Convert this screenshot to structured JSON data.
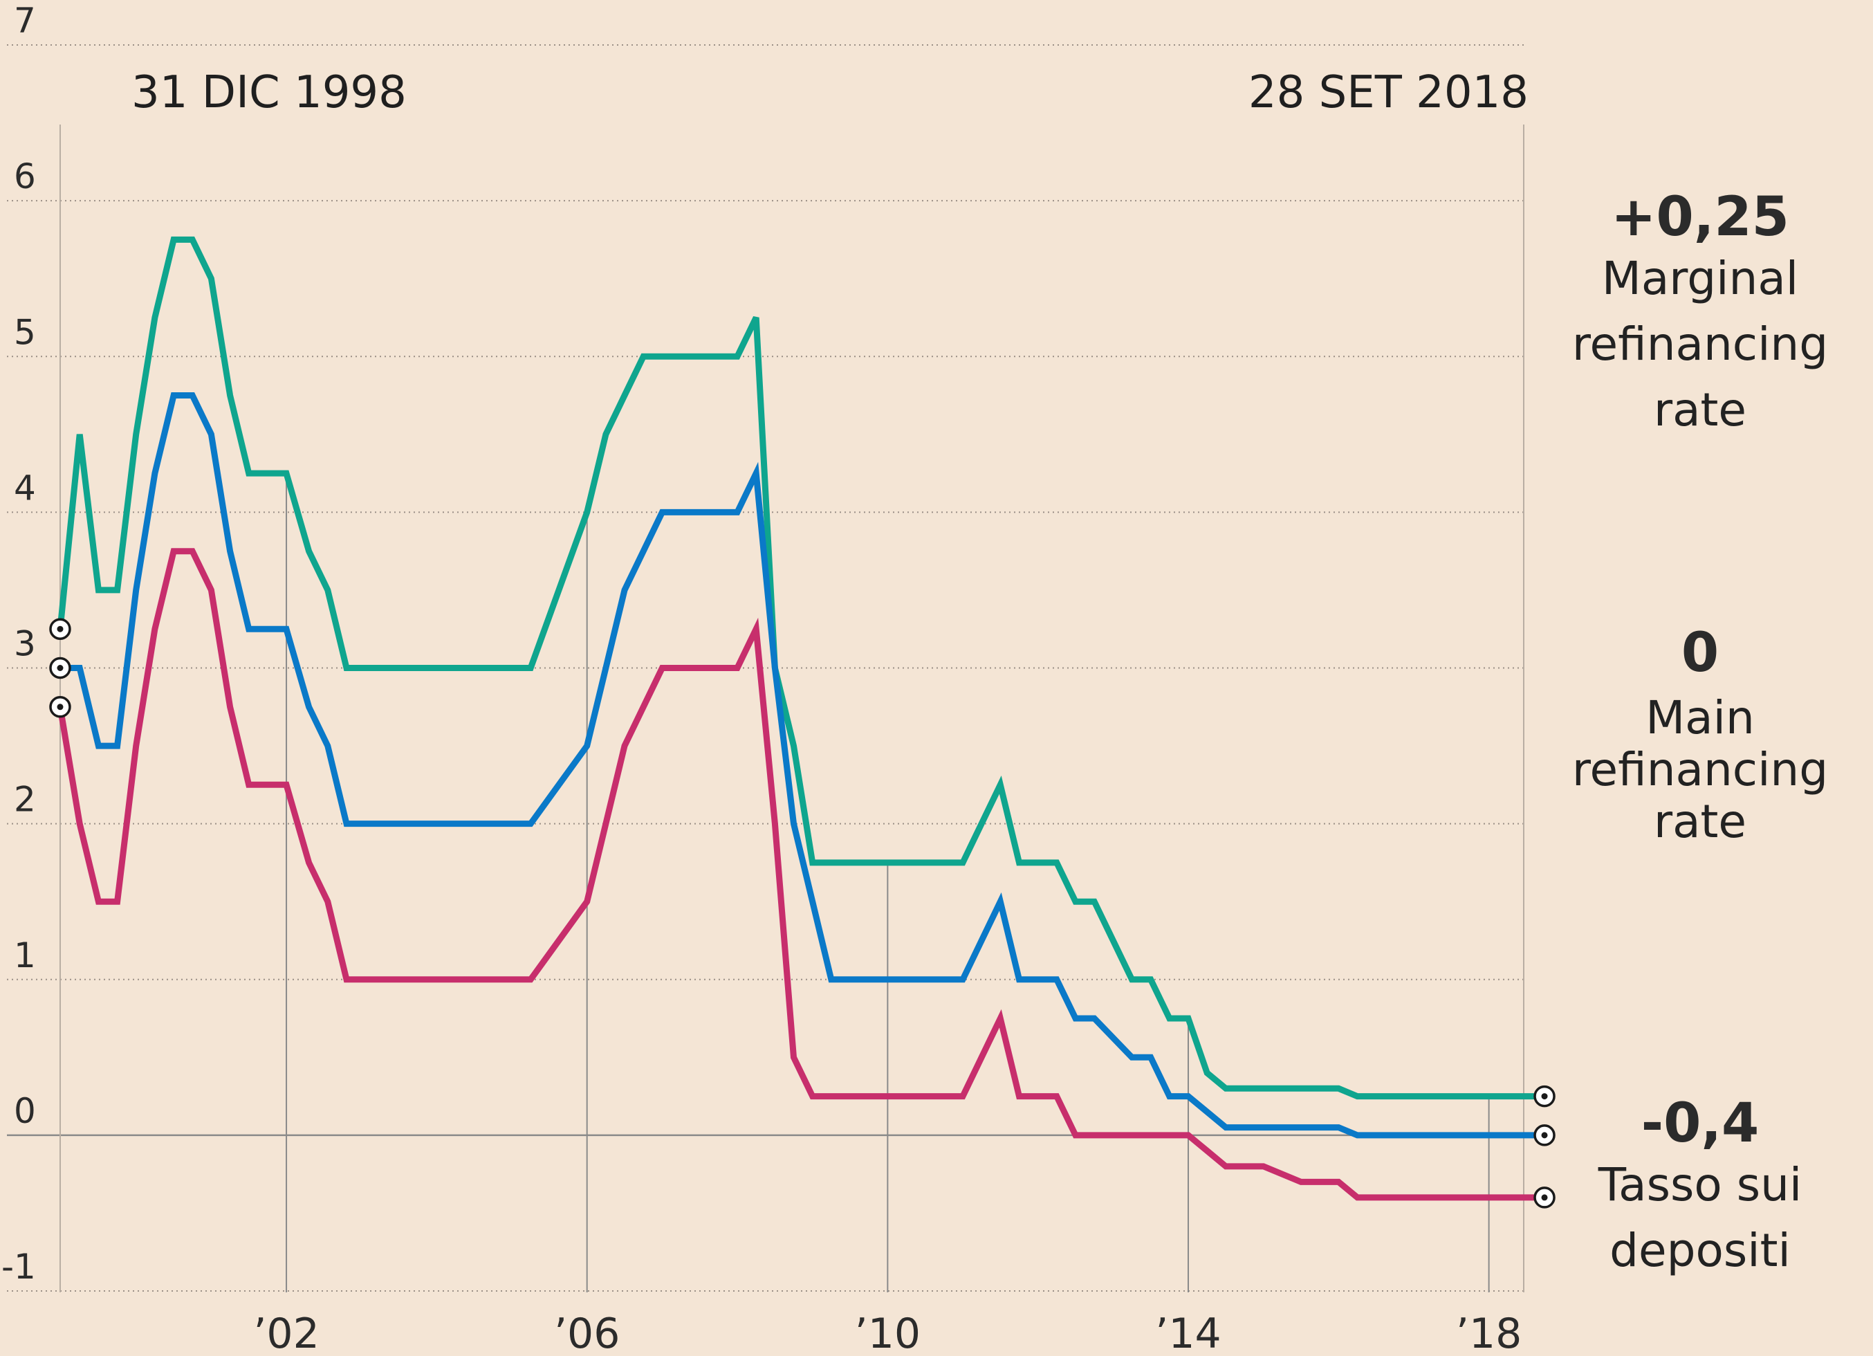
{
  "chart_data": {
    "type": "line",
    "title": "",
    "xlabel": "",
    "ylabel": "",
    "ylim": [
      -1,
      7
    ],
    "xlim": [
      1998.3,
      2018.85
    ],
    "y_ticks": [
      "-1",
      "0",
      "1",
      "2",
      "3",
      "4",
      "5",
      "6",
      "7"
    ],
    "x_ticks": [
      {
        "value": 2002,
        "label": "’02"
      },
      {
        "value": 2006,
        "label": "’06"
      },
      {
        "value": 2010,
        "label": "’10"
      },
      {
        "value": 2014,
        "label": "’14"
      },
      {
        "value": 2018,
        "label": "’18"
      }
    ],
    "start_date": "31 DIC 1998",
    "end_date": "28 SET 2018",
    "colors": {
      "marginal": "#0fa58e",
      "main": "#0a79c8",
      "deposit": "#c72e6c"
    },
    "series": [
      {
        "id": "marginal",
        "name": "Marginal refinancing rate",
        "change": "+0,25",
        "label_lines": [
          "Marginal",
          "refinancing",
          "rate"
        ],
        "x": [
          1998.99,
          1999.25,
          1999.5,
          1999.75,
          2000.0,
          2000.25,
          2000.5,
          2000.75,
          2001.0,
          2001.25,
          2001.5,
          2001.75,
          2002.0,
          2002.3,
          2002.55,
          2002.8,
          2003.05,
          2003.25,
          2003.5,
          2005.25,
          2006.0,
          2006.25,
          2006.5,
          2006.75,
          2007.0,
          2007.5,
          2008.0,
          2008.25,
          2008.5,
          2008.75,
          2009.0,
          2009.25,
          2011.0,
          2011.5,
          2011.75,
          2012.0,
          2012.25,
          2012.5,
          2012.75,
          2013.25,
          2013.5,
          2013.75,
          2014.0,
          2014.25,
          2014.5,
          2014.75,
          2015.0,
          2015.5,
          2016.0,
          2016.25,
          2018.74
        ],
        "values": [
          3.25,
          4.5,
          3.5,
          3.5,
          4.5,
          5.25,
          5.75,
          5.75,
          5.5,
          4.75,
          4.25,
          4.25,
          4.25,
          3.75,
          3.5,
          3.0,
          3.0,
          3.0,
          3.0,
          3.0,
          4.0,
          4.5,
          4.75,
          5.0,
          5.0,
          5.0,
          5.0,
          5.25,
          3.0,
          2.5,
          1.75,
          1.75,
          1.75,
          2.25,
          1.75,
          1.75,
          1.75,
          1.5,
          1.5,
          1.0,
          1.0,
          0.75,
          0.75,
          0.4,
          0.3,
          0.3,
          0.3,
          0.3,
          0.3,
          0.25,
          0.25
        ]
      },
      {
        "id": "main",
        "name": "Main refinancing rate",
        "change": "0",
        "label_lines": [
          "Main",
          "refinancing",
          "rate"
        ],
        "x": [
          1998.99,
          1999.25,
          1999.5,
          1999.75,
          2000.0,
          2000.25,
          2000.5,
          2000.75,
          2001.0,
          2001.25,
          2001.5,
          2001.75,
          2002.0,
          2002.3,
          2002.55,
          2002.8,
          2003.05,
          2003.25,
          2003.5,
          2005.25,
          2006.0,
          2006.25,
          2006.5,
          2006.75,
          2007.0,
          2007.5,
          2008.0,
          2008.25,
          2008.5,
          2008.75,
          2009.0,
          2009.25,
          2011.0,
          2011.5,
          2011.75,
          2012.0,
          2012.25,
          2012.5,
          2012.75,
          2013.25,
          2013.5,
          2013.75,
          2014.0,
          2014.25,
          2014.5,
          2014.75,
          2015.0,
          2015.5,
          2016.0,
          2016.25,
          2018.74
        ],
        "values": [
          3.0,
          3.0,
          2.5,
          2.5,
          3.5,
          4.25,
          4.75,
          4.75,
          4.5,
          3.75,
          3.25,
          3.25,
          3.25,
          2.75,
          2.5,
          2.0,
          2.0,
          2.0,
          2.0,
          2.0,
          2.5,
          3.0,
          3.5,
          3.75,
          4.0,
          4.0,
          4.0,
          4.25,
          3.0,
          2.0,
          1.5,
          1.0,
          1.0,
          1.5,
          1.0,
          1.0,
          1.0,
          0.75,
          0.75,
          0.5,
          0.5,
          0.25,
          0.25,
          0.15,
          0.05,
          0.05,
          0.05,
          0.05,
          0.05,
          0.0,
          0.0
        ]
      },
      {
        "id": "deposit",
        "name": "Tasso sui depositi",
        "change": "-0,4",
        "label_lines": [
          "Tasso sui",
          "depositi"
        ],
        "x": [
          1998.99,
          1999.25,
          1999.5,
          1999.75,
          2000.0,
          2000.25,
          2000.5,
          2000.75,
          2001.0,
          2001.25,
          2001.5,
          2001.75,
          2002.0,
          2002.3,
          2002.55,
          2002.8,
          2003.05,
          2003.25,
          2003.5,
          2005.25,
          2006.0,
          2006.25,
          2006.5,
          2006.75,
          2007.0,
          2007.5,
          2008.0,
          2008.25,
          2008.5,
          2008.75,
          2009.0,
          2009.25,
          2011.0,
          2011.5,
          2011.75,
          2012.0,
          2012.25,
          2012.5,
          2012.75,
          2013.25,
          2013.5,
          2013.75,
          2014.0,
          2014.25,
          2014.5,
          2014.75,
          2015.0,
          2015.5,
          2016.0,
          2016.25,
          2018.74
        ],
        "values": [
          2.75,
          2.0,
          1.5,
          1.5,
          2.5,
          3.25,
          3.75,
          3.75,
          3.5,
          2.75,
          2.25,
          2.25,
          2.25,
          1.75,
          1.5,
          1.0,
          1.0,
          1.0,
          1.0,
          1.0,
          1.5,
          2.0,
          2.5,
          2.75,
          3.0,
          3.0,
          3.0,
          3.25,
          2.0,
          0.5,
          0.25,
          0.25,
          0.25,
          0.75,
          0.25,
          0.25,
          0.25,
          0.0,
          0.0,
          0.0,
          0.0,
          0.0,
          0.0,
          -0.1,
          -0.2,
          -0.2,
          -0.2,
          -0.3,
          -0.3,
          -0.4,
          -0.4
        ]
      }
    ]
  }
}
